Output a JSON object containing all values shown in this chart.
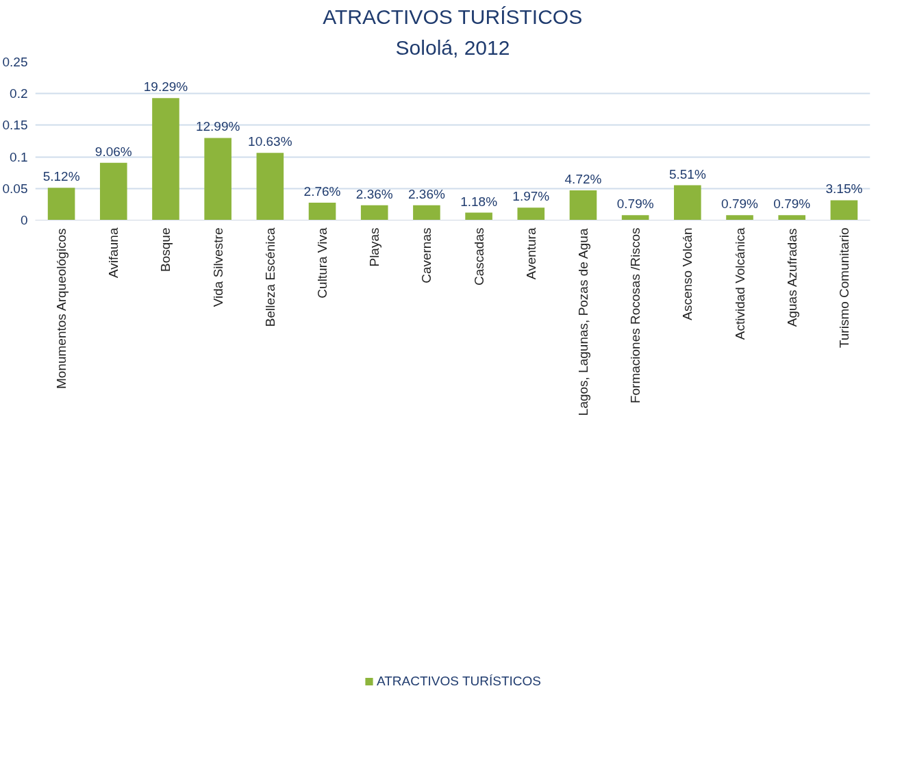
{
  "chart_data": {
    "type": "bar",
    "title": "ATRACTIVOS TURÍSTICOS",
    "subtitle": "Sololá, 2012",
    "categories": [
      "Monumentos Arqueológicos",
      "Avifauna",
      "Bosque",
      "Vida Silvestre",
      "Belleza Escénica",
      "Cultura Viva",
      "Playas",
      "Cavernas",
      "Cascadas",
      "Aventura",
      "Lagos, Lagunas, Pozas de Agua",
      "Formaciones Rocosas /Riscos",
      "Ascenso Volcán",
      "Actividad Volcánica",
      "Aguas Azufradas",
      "Turismo Comunitario"
    ],
    "series": [
      {
        "name": "ATRACTIVOS TURÍSTICOS",
        "color": "#8db53c",
        "values": [
          0.0512,
          0.0906,
          0.1929,
          0.1299,
          0.1063,
          0.0276,
          0.0236,
          0.0236,
          0.0118,
          0.0197,
          0.0472,
          0.0079,
          0.0551,
          0.0079,
          0.0079,
          0.0315
        ],
        "value_labels": [
          "5.12%",
          "9.06%",
          "19.29%",
          "12.99%",
          "10.63%",
          "2.76%",
          "2.36%",
          "2.36%",
          "1.18%",
          "1.97%",
          "4.72%",
          "0.79%",
          "5.51%",
          "0.79%",
          "0.79%",
          "3.15%"
        ]
      }
    ],
    "ylim": [
      0,
      0.25
    ],
    "yticks": [
      0,
      0.05,
      0.1,
      0.15,
      0.2,
      0.25
    ],
    "grid": "y",
    "legend": "bottom"
  }
}
